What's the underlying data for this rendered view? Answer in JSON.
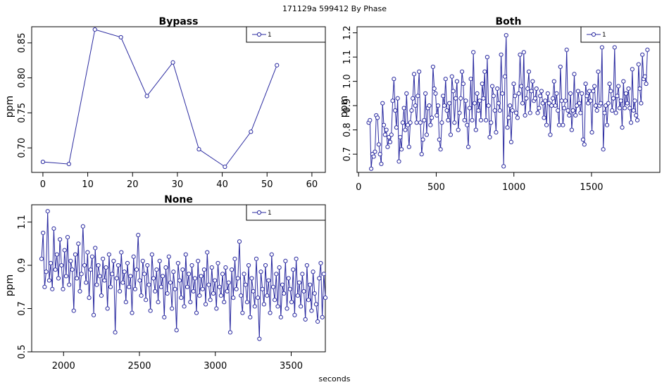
{
  "figure": {
    "title": "171129a   599412   By Phase",
    "xlabel": "seconds",
    "series_color": "#2b2ba0"
  },
  "chart_data": [
    {
      "type": "line",
      "title": "Bypass",
      "ylabel": "ppm",
      "legend": {
        "label": "1",
        "position": "top-right"
      },
      "xlim": [
        -2.5,
        63
      ],
      "ylim": [
        0.665,
        0.873
      ],
      "xticks": [
        0,
        10,
        20,
        30,
        40,
        50,
        60
      ],
      "yticks": [
        0.7,
        0.75,
        0.8,
        0.85
      ],
      "ytick_labels": [
        "0.70",
        "0.75",
        "0.80",
        "0.85"
      ],
      "grid": false,
      "x": [
        0,
        5.8,
        11.6,
        17.4,
        23.2,
        29,
        34.8,
        40.6,
        46.4,
        52.2
      ],
      "y": [
        0.68,
        0.677,
        0.869,
        0.858,
        0.774,
        0.822,
        0.698,
        0.673,
        0.723,
        0.818
      ]
    },
    {
      "type": "line",
      "title": "Both",
      "ylabel": "ppm",
      "legend": {
        "label": "1",
        "position": "top-right"
      },
      "xlim": [
        -10,
        1940
      ],
      "ylim": [
        0.625,
        1.225
      ],
      "xticks": [
        0,
        500,
        1000,
        1500
      ],
      "yticks": [
        0.7,
        0.8,
        0.9,
        1.0,
        1.1,
        1.2
      ],
      "ytick_labels": [
        "0.7",
        "0.8",
        "0.9",
        "1.0",
        "1.1",
        "1.2"
      ],
      "grid": false,
      "x_start": 65,
      "x_end": 1860,
      "y": [
        0.83,
        0.84,
        0.64,
        0.7,
        0.69,
        0.71,
        0.86,
        0.85,
        0.74,
        0.7,
        0.66,
        0.91,
        0.82,
        0.78,
        0.8,
        0.73,
        0.77,
        0.75,
        0.78,
        0.92,
        1.01,
        0.88,
        0.81,
        0.93,
        0.67,
        0.77,
        0.72,
        0.83,
        0.89,
        0.8,
        0.95,
        0.82,
        0.73,
        0.83,
        0.88,
        0.93,
        1.03,
        0.9,
        0.83,
        0.94,
        1.04,
        0.83,
        0.7,
        0.76,
        0.84,
        0.95,
        0.78,
        0.89,
        0.9,
        0.82,
        0.85,
        1.06,
        0.97,
        0.95,
        0.86,
        0.9,
        0.76,
        0.72,
        0.83,
        0.94,
        0.9,
        1.01,
        0.88,
        0.84,
        0.91,
        0.78,
        1.02,
        0.96,
        0.83,
        0.93,
        1.0,
        0.8,
        0.87,
        0.93,
        1.04,
        0.99,
        0.84,
        0.92,
        0.82,
        0.73,
        0.89,
        1.01,
        0.84,
        1.12,
        0.91,
        0.8,
        0.95,
        0.88,
        0.92,
        0.84,
        0.99,
        0.93,
        1.04,
        0.84,
        1.1,
        0.9,
        0.77,
        0.83,
        0.98,
        0.94,
        0.88,
        0.79,
        0.97,
        0.91,
        0.88,
        1.11,
        0.95,
        0.65,
        1.02,
        1.19,
        0.81,
        0.85,
        0.9,
        0.75,
        0.88,
        0.99,
        0.94,
        0.87,
        0.85,
        0.95,
        1.11,
        0.98,
        0.91,
        1.12,
        0.86,
        0.93,
        0.97,
        1.04,
        0.87,
        0.96,
        1.0,
        0.92,
        0.93,
        0.97,
        0.87,
        0.89,
        0.94,
        0.96,
        0.91,
        0.85,
        0.92,
        0.82,
        0.95,
        0.91,
        0.78,
        0.9,
        0.93,
        1.0,
        0.9,
        0.95,
        0.88,
        0.82,
        1.06,
        0.92,
        0.82,
        0.89,
        0.92,
        1.13,
        0.88,
        0.86,
        0.95,
        0.8,
        0.88,
        1.03,
        0.86,
        0.9,
        0.96,
        0.91,
        0.87,
        0.95,
        0.76,
        0.74,
        0.99,
        0.94,
        0.91,
        0.96,
        0.92,
        0.79,
        0.96,
        0.98,
        0.9,
        0.88,
        1.04,
        0.9,
        0.91,
        1.14,
        0.72,
        0.87,
        0.9,
        0.82,
        0.91,
        0.99,
        0.96,
        0.88,
        0.93,
        1.14,
        0.87,
        0.94,
        0.98,
        0.89,
        0.92,
        0.81,
        1.0,
        0.89,
        0.95,
        0.91,
        0.97,
        0.89,
        0.83,
        1.05,
        0.88,
        0.92,
        0.86,
        0.84,
        1.07,
        0.97,
        0.91,
        1.11,
        1.01,
        1.02,
        0.99,
        1.13
      ]
    },
    {
      "type": "line",
      "title": "None",
      "ylabel": "ppm",
      "legend": {
        "label": "1",
        "position": "top-right"
      },
      "xlim": [
        1790,
        3725
      ],
      "ylim": [
        0.5,
        1.18
      ],
      "xticks": [
        2000,
        2500,
        3000,
        3500
      ],
      "yticks": [
        0.5,
        0.7,
        0.9,
        1.1
      ],
      "ytick_labels": [
        "0.5",
        "0.7",
        "0.9",
        "1.1"
      ],
      "grid": false,
      "x_start": 1855,
      "x_end": 3725,
      "y": [
        0.93,
        1.05,
        0.8,
        0.87,
        1.15,
        0.83,
        0.91,
        0.79,
        1.07,
        0.88,
        0.95,
        0.84,
        1.02,
        0.9,
        0.79,
        0.97,
        0.85,
        1.03,
        0.81,
        0.92,
        0.88,
        0.69,
        0.95,
        0.84,
        1.0,
        0.78,
        0.86,
        1.08,
        0.9,
        0.82,
        0.96,
        0.75,
        0.88,
        0.94,
        0.67,
        0.98,
        0.81,
        0.9,
        0.85,
        0.76,
        0.93,
        0.83,
        0.89,
        0.7,
        0.95,
        0.8,
        0.86,
        0.92,
        0.59,
        0.84,
        0.9,
        0.78,
        0.96,
        0.82,
        0.87,
        0.73,
        0.91,
        0.8,
        0.85,
        0.68,
        0.94,
        0.79,
        0.88,
        1.04,
        0.83,
        0.76,
        0.92,
        0.86,
        0.74,
        0.9,
        0.81,
        0.69,
        0.95,
        0.84,
        0.78,
        0.88,
        0.73,
        0.92,
        0.8,
        0.85,
        0.66,
        0.89,
        0.77,
        0.94,
        0.82,
        0.7,
        0.87,
        0.79,
        0.6,
        0.91,
        0.83,
        0.75,
        0.88,
        0.71,
        0.95,
        0.8,
        0.86,
        0.73,
        0.9,
        0.78,
        0.84,
        0.68,
        0.92,
        0.76,
        0.85,
        0.79,
        0.88,
        0.72,
        0.96,
        0.81,
        0.74,
        0.89,
        0.77,
        0.83,
        0.7,
        0.91,
        0.8,
        0.76,
        0.86,
        0.73,
        0.89,
        0.78,
        0.82,
        0.59,
        0.88,
        0.75,
        0.93,
        0.79,
        0.84,
        1.01,
        0.76,
        0.68,
        0.86,
        0.81,
        0.73,
        0.9,
        0.66,
        0.84,
        0.78,
        0.71,
        0.93,
        0.75,
        0.56,
        0.87,
        0.79,
        0.72,
        0.9,
        0.76,
        0.83,
        0.68,
        0.95,
        0.8,
        0.74,
        0.86,
        0.71,
        0.89,
        0.66,
        0.81,
        0.77,
        0.92,
        0.7,
        0.84,
        0.79,
        0.73,
        0.88,
        0.67,
        0.93,
        0.76,
        0.82,
        0.71,
        0.86,
        0.78,
        0.65,
        0.9,
        0.74,
        0.81,
        0.69,
        0.87,
        0.77,
        0.72,
        0.64,
        0.84,
        0.91,
        0.66,
        0.86,
        0.75
      ]
    }
  ]
}
